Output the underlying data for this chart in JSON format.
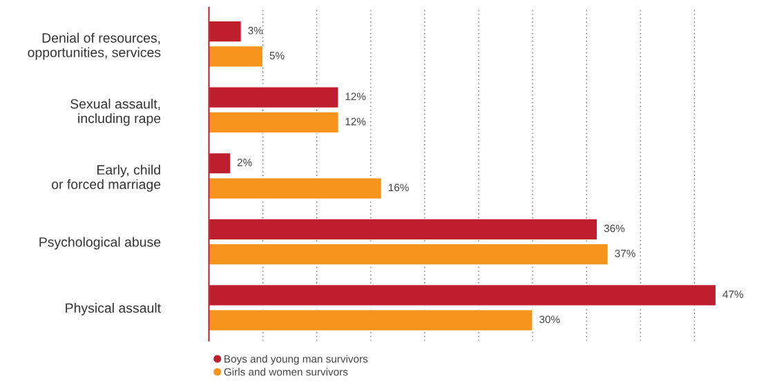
{
  "chart_data": {
    "type": "bar",
    "orientation": "horizontal",
    "categories": [
      "Denial of resources,\nopportunities, services",
      "Sexual assault,\nincluding rape",
      "Early, child\nor forced marriage",
      "Psychological abuse",
      "Physical assault"
    ],
    "series": [
      {
        "name": "Boys and young man survivors",
        "color": "#be1e2d",
        "values": [
          3,
          12,
          2,
          36,
          47
        ],
        "value_labels": [
          "3%",
          "12%",
          "2%",
          "36%",
          "47%"
        ]
      },
      {
        "name": "Girls and women survivors",
        "color": "#f7941d",
        "values": [
          5,
          12,
          16,
          37,
          30
        ],
        "value_labels": [
          "5%",
          "12%",
          "16%",
          "37%",
          "30%"
        ]
      }
    ],
    "xticks": [
      {
        "value": 5,
        "label": null
      },
      {
        "value": 10,
        "label": null
      },
      {
        "value": 15,
        "label": null
      },
      {
        "value": 20,
        "label": null
      },
      {
        "value": 25,
        "label": null
      },
      {
        "value": 30,
        "label": null
      },
      {
        "value": 35,
        "label": null
      },
      {
        "value": 40,
        "label": null
      },
      {
        "value": 45,
        "label": null
      }
    ],
    "tick_labels": "y",
    "grid": "x",
    "legend": "bottom"
  }
}
